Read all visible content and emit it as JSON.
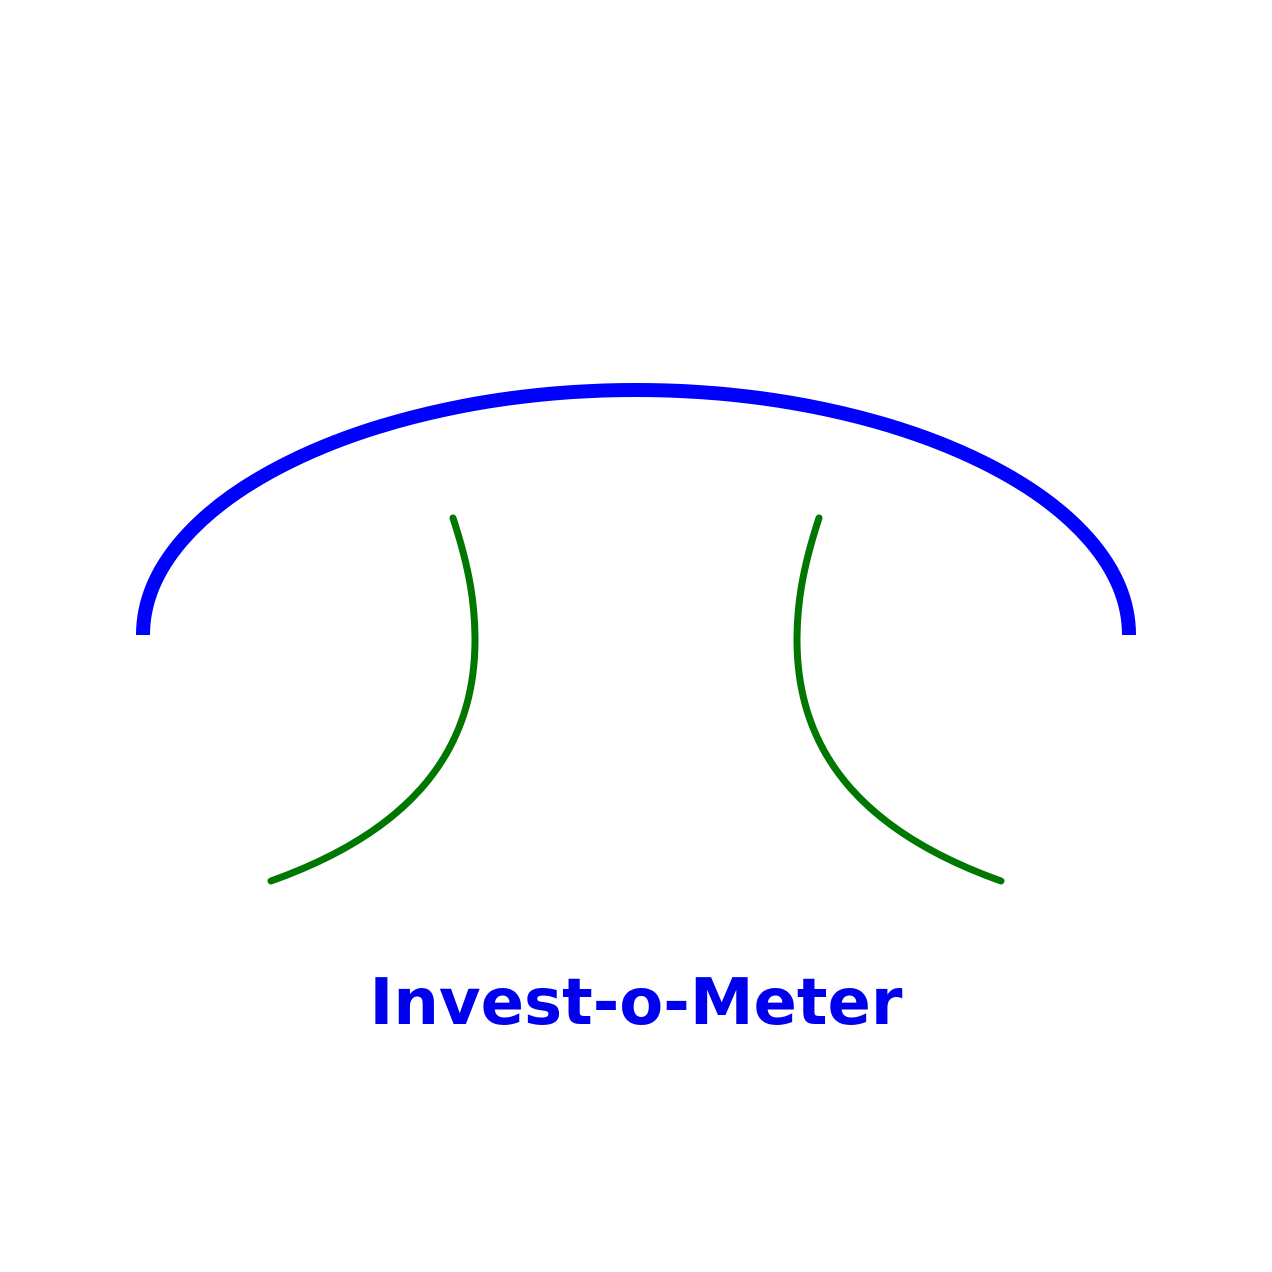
{
  "title": "Invest-o-Meter",
  "colors": {
    "background": "#ffffff",
    "arc": "#0000ff",
    "curves": "#007700",
    "title": "#0000ee"
  }
}
